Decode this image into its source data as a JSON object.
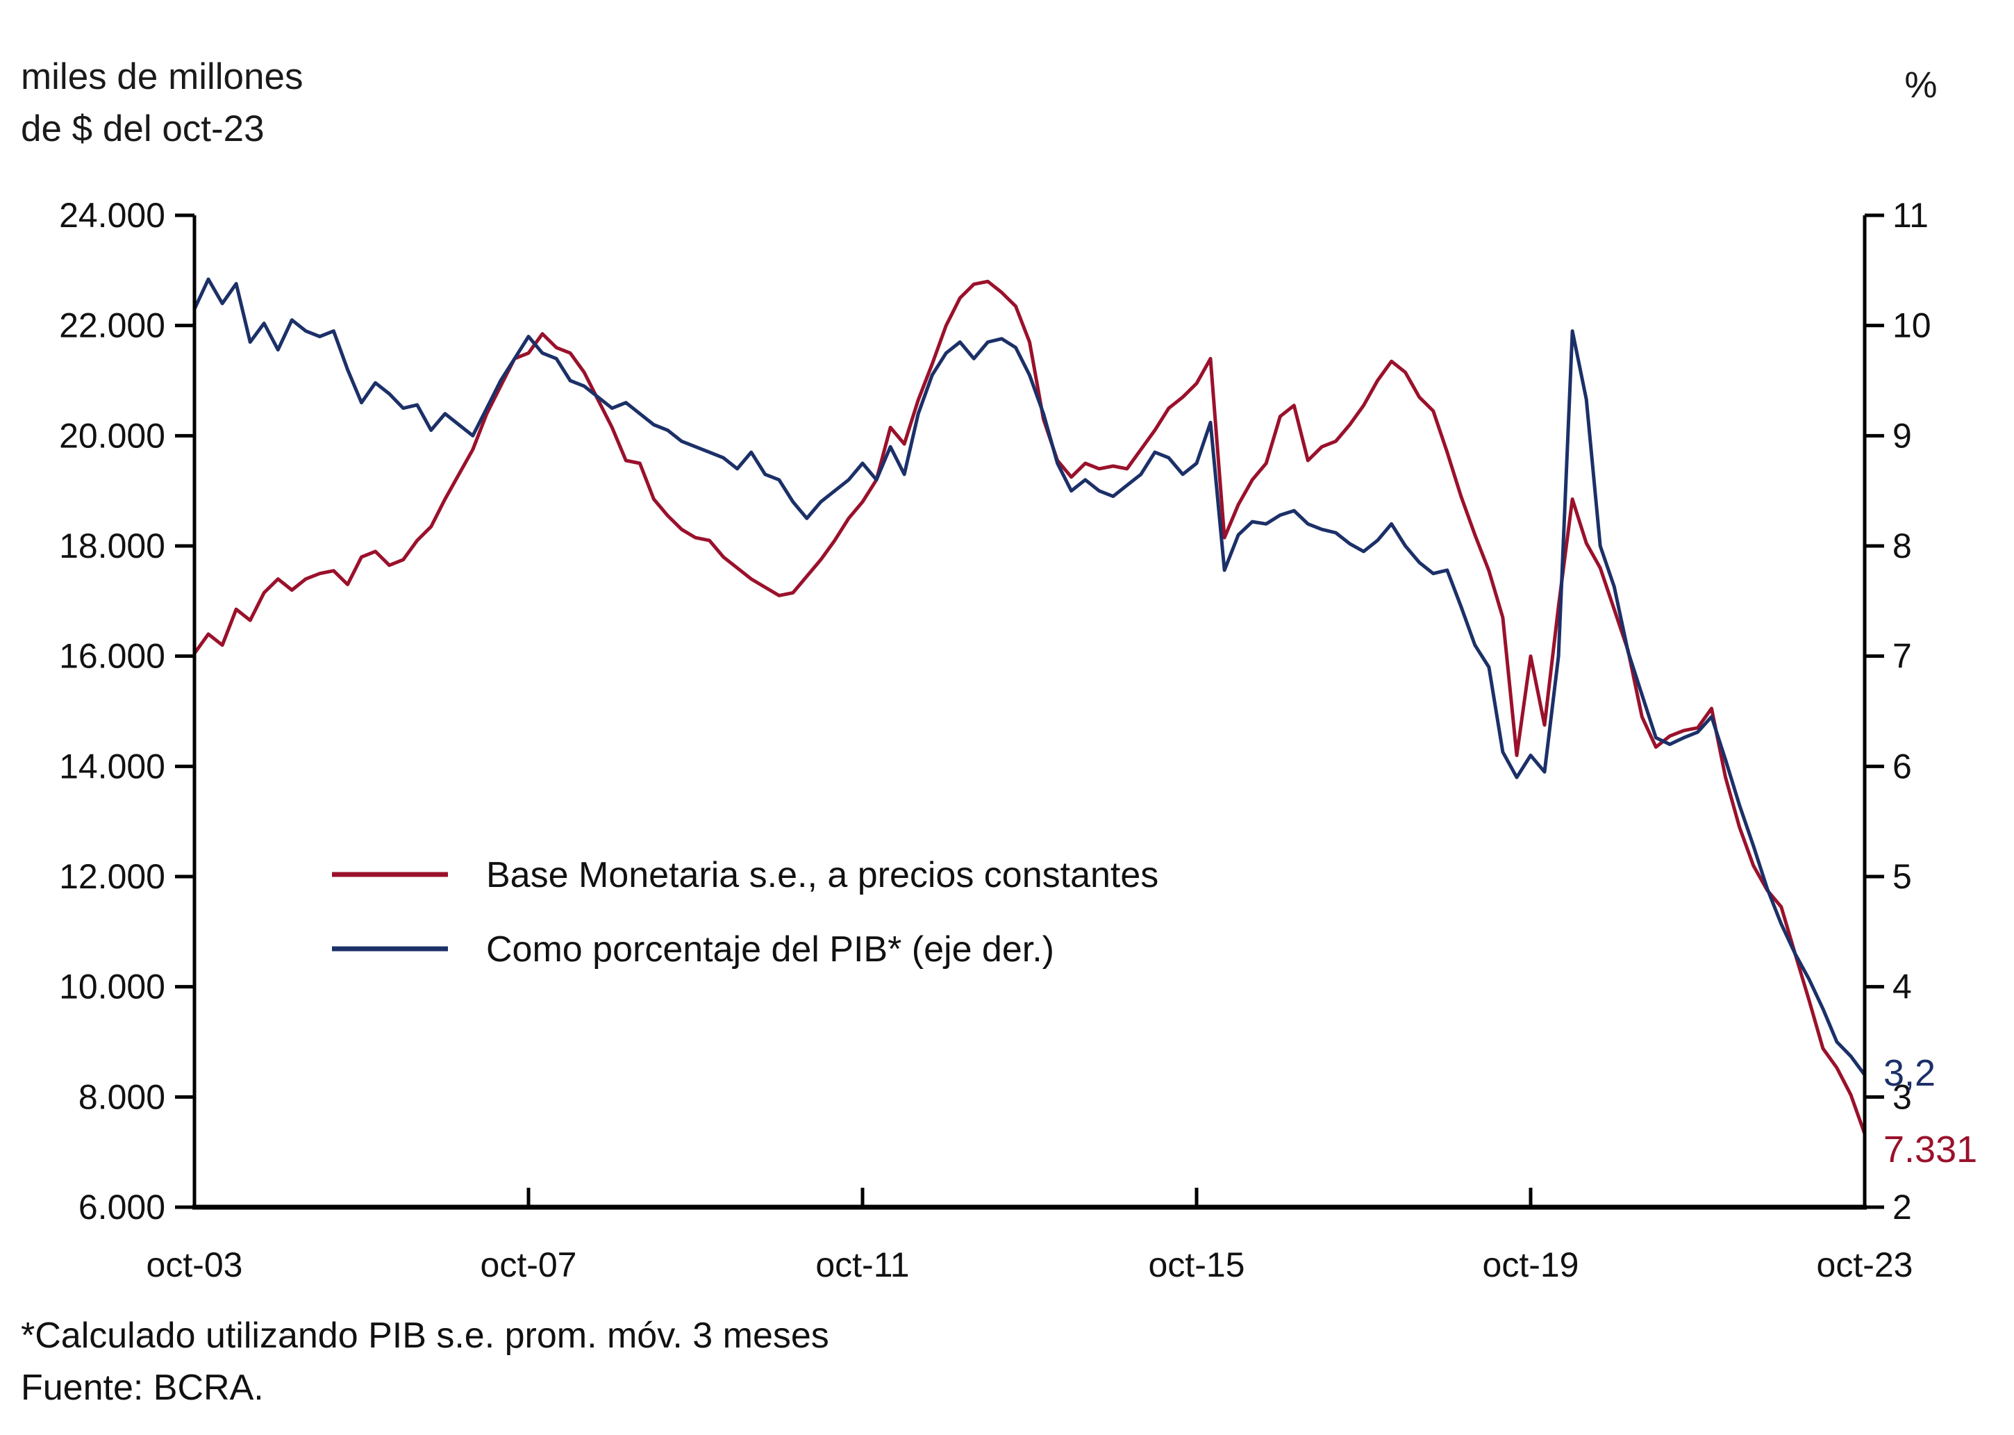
{
  "figure": {
    "left_axis_title_line1": "miles de millones",
    "left_axis_title_line2": "de $ del oct-23",
    "right_axis_title": "%",
    "footnote_line1": "*Calculado utilizando PIB s.e. prom. móv. 3 meses",
    "footnote_line2": "Fuente: BCRA.",
    "colors": {
      "red_series": "#9A112B",
      "blue_series": "#1C3068",
      "axis": "#000000"
    }
  },
  "chart_data": {
    "type": "line",
    "title": "",
    "grid": false,
    "legend_position": "inside-left-middle",
    "x_axis": {
      "tick_labels": [
        "oct-03",
        "oct-07",
        "oct-11",
        "oct-15",
        "oct-19",
        "oct-23"
      ],
      "start": "oct-03",
      "end": "oct-23",
      "sample_step_months": 2
    },
    "left_axis": {
      "title_lines": [
        "miles de millones",
        "de $ del oct-23"
      ],
      "tick_labels": [
        "24.000",
        "22.000",
        "20.000",
        "18.000",
        "16.000",
        "14.000",
        "12.000",
        "10.000",
        "8.000",
        "6.000"
      ],
      "tick_values": [
        24000,
        22000,
        20000,
        18000,
        16000,
        14000,
        12000,
        10000,
        8000,
        6000
      ],
      "range": [
        6000,
        24000
      ]
    },
    "right_axis": {
      "title": "%",
      "tick_labels": [
        "11",
        "10",
        "9",
        "8",
        "7",
        "6",
        "5",
        "4",
        "3",
        "2"
      ],
      "tick_values": [
        11,
        10,
        9,
        8,
        7,
        6,
        5,
        4,
        3,
        2
      ],
      "range": [
        2,
        11
      ]
    },
    "series": [
      {
        "name": "Base Monetaria s.e., a precios constantes",
        "axis": "left",
        "color": "#9A112B",
        "end_label": "7.331",
        "end_value": 7331,
        "values": [
          16050,
          16400,
          16200,
          16850,
          16650,
          17150,
          17400,
          17200,
          17400,
          17500,
          17550,
          17300,
          17800,
          17900,
          17650,
          17750,
          18100,
          18350,
          18850,
          19300,
          19750,
          20400,
          20900,
          21400,
          21500,
          21850,
          21600,
          21500,
          21150,
          20650,
          20150,
          19550,
          19500,
          18850,
          18550,
          18300,
          18150,
          18100,
          17800,
          17600,
          17400,
          17250,
          17100,
          17150,
          17450,
          17750,
          18100,
          18500,
          18800,
          19200,
          20150,
          19850,
          20650,
          21300,
          22000,
          22500,
          22750,
          22800,
          22600,
          22350,
          21700,
          20300,
          19550,
          19250,
          19500,
          19400,
          19450,
          19400,
          19750,
          20100,
          20500,
          20700,
          20950,
          21400,
          18150,
          18750,
          19200,
          19500,
          20350,
          20550,
          19550,
          19800,
          19900,
          20200,
          20550,
          21000,
          21350,
          21150,
          20700,
          20450,
          19700,
          18900,
          18200,
          17550,
          16700,
          14200,
          16000,
          14750,
          16900,
          18850,
          18050,
          17600,
          16850,
          16100,
          14900,
          14350,
          14550,
          14650,
          14700,
          15050,
          13800,
          12900,
          12200,
          11750,
          11450,
          10600,
          9760,
          8880,
          8530,
          8040,
          7331
        ]
      },
      {
        "name": "Como porcentaje del PIB* (eje der.)",
        "axis": "right",
        "color": "#1C3068",
        "end_label": "3,2",
        "end_value": 3.2,
        "values": [
          10.15,
          10.42,
          10.2,
          10.38,
          9.85,
          10.02,
          9.78,
          10.05,
          9.95,
          9.9,
          9.95,
          9.6,
          9.3,
          9.48,
          9.38,
          9.25,
          9.28,
          9.05,
          9.2,
          9.1,
          9.0,
          9.25,
          9.5,
          9.7,
          9.9,
          9.75,
          9.7,
          9.5,
          9.45,
          9.35,
          9.25,
          9.3,
          9.2,
          9.1,
          9.05,
          8.95,
          8.9,
          8.85,
          8.8,
          8.7,
          8.85,
          8.65,
          8.6,
          8.4,
          8.25,
          8.4,
          8.5,
          8.6,
          8.75,
          8.6,
          8.9,
          8.65,
          9.2,
          9.55,
          9.75,
          9.85,
          9.7,
          9.85,
          9.88,
          9.8,
          9.55,
          9.2,
          8.75,
          8.5,
          8.6,
          8.5,
          8.45,
          8.55,
          8.65,
          8.85,
          8.8,
          8.65,
          8.75,
          9.12,
          7.78,
          8.1,
          8.22,
          8.2,
          8.28,
          8.32,
          8.2,
          8.15,
          8.12,
          8.02,
          7.95,
          8.05,
          8.2,
          8.0,
          7.85,
          7.75,
          7.78,
          7.45,
          7.1,
          6.9,
          6.13,
          5.9,
          6.1,
          5.95,
          7.0,
          9.95,
          9.33,
          8.0,
          7.63,
          7.04,
          6.65,
          6.26,
          6.2,
          6.26,
          6.31,
          6.45,
          6.06,
          5.65,
          5.28,
          4.89,
          4.57,
          4.3,
          4.07,
          3.8,
          3.5,
          3.37,
          3.2
        ]
      }
    ]
  }
}
